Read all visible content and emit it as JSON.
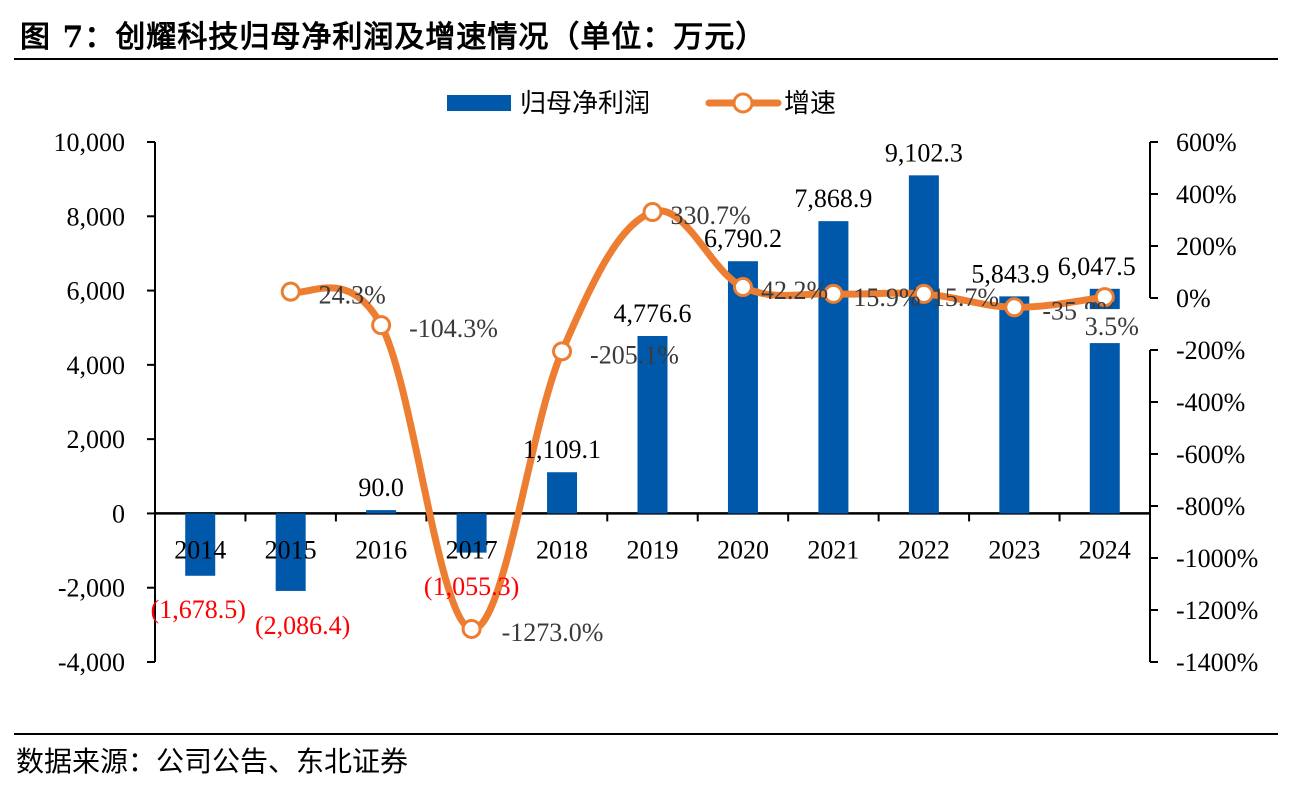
{
  "header": {
    "title": "图 7：创耀科技归母净利润及增速情况（单位：万元）"
  },
  "footer": {
    "source": "数据来源：公司公告、东北证券"
  },
  "colors": {
    "bar": "#0058AA",
    "line": "#ED7D31",
    "negative_label": "#FF0000"
  },
  "chart_data": {
    "type": "bar",
    "title": "创耀科技归母净利润及增速情况（单位：万元）",
    "categories": [
      "2014",
      "2015",
      "2016",
      "2017",
      "2018",
      "2019",
      "2020",
      "2021",
      "2022",
      "2023",
      "2024"
    ],
    "series": [
      {
        "name": "归母净利润",
        "type": "bar",
        "axis": "left",
        "values": [
          -1678.5,
          -2086.4,
          90.0,
          -1055.3,
          1109.1,
          4776.6,
          6790.2,
          7868.9,
          9102.3,
          5843.9,
          6047.5
        ],
        "labels": [
          "(1,678.5)",
          "(2,086.4)",
          "90.0",
          "(1,055.3)",
          "1,109.1",
          "4,776.6",
          "6,790.2",
          "7,868.9",
          "9,102.3",
          "5,843.9",
          "6,047.5"
        ]
      },
      {
        "name": "增速",
        "type": "line",
        "axis": "right",
        "values": [
          null,
          24.3,
          -104.3,
          -1273.0,
          -205.1,
          330.7,
          42.2,
          15.9,
          15.7,
          -35.8,
          3.5
        ],
        "labels": [
          "",
          "24.3%",
          "-104.3%",
          "-1273.0%",
          "-205.1%",
          "330.7%",
          "42.2%",
          "15.9%",
          "15.7%",
          "-35.8%",
          "3.5%"
        ]
      }
    ],
    "left_axis": {
      "ylim": [
        -4000,
        10000
      ],
      "ticks": [
        10000,
        8000,
        6000,
        4000,
        2000,
        0,
        -2000,
        -4000
      ],
      "tick_labels": [
        "10,000",
        "8,000",
        "6,000",
        "4,000",
        "2,000",
        "0",
        "-2,000",
        "-4,000"
      ]
    },
    "right_axis": {
      "ylim": [
        -1400,
        600
      ],
      "ticks": [
        600,
        400,
        200,
        0,
        -200,
        -400,
        -600,
        -800,
        -1000,
        -1200,
        -1400
      ],
      "tick_labels": [
        "600%",
        "400%",
        "200%",
        "0%",
        "-200%",
        "-400%",
        "-600%",
        "-800%",
        "-1000%",
        "-1200%",
        "-1400%"
      ]
    },
    "legend": {
      "position": "top-center",
      "entries": [
        "归母净利润",
        "增速"
      ]
    },
    "grid": false
  }
}
